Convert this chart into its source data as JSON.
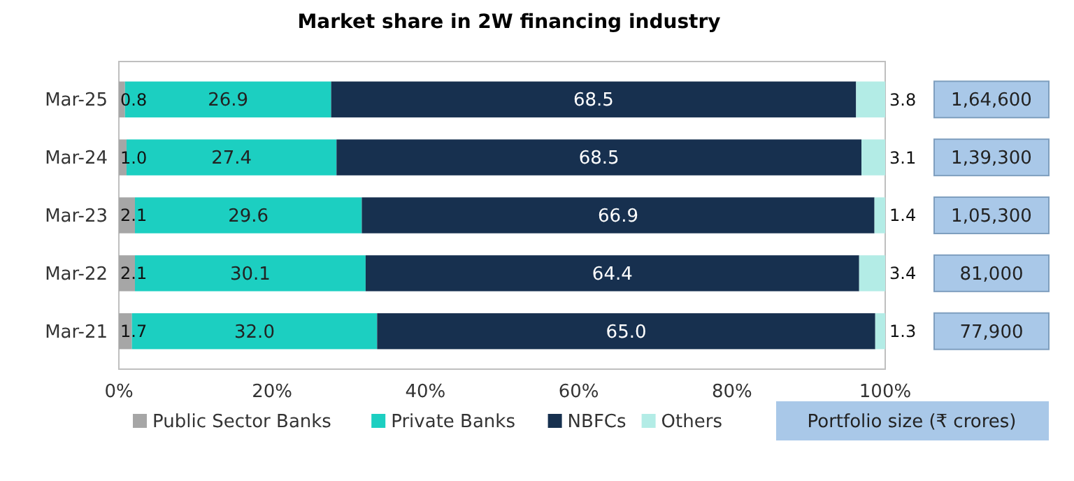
{
  "chart_data": {
    "type": "bar",
    "orientation": "horizontal",
    "stacked": true,
    "title": "Market share in 2W financing industry",
    "categories": [
      "Mar-25",
      "Mar-24",
      "Mar-23",
      "Mar-22",
      "Mar-21"
    ],
    "series": [
      {
        "name": "Public Sector Banks",
        "color": "#a6a6a6",
        "values": [
          0.8,
          1.0,
          2.1,
          2.1,
          1.7
        ],
        "value_labels": [
          "0.8",
          "1.0",
          "2.1",
          "2.1",
          "1.7"
        ]
      },
      {
        "name": "Private Banks",
        "color": "#1ccfc1",
        "values": [
          26.9,
          27.4,
          29.6,
          30.1,
          32.0
        ],
        "value_labels": [
          "26.9",
          "27.4",
          "29.6",
          "30.1",
          "32.0"
        ]
      },
      {
        "name": "NBFCs",
        "color": "#17304f",
        "values": [
          68.5,
          68.5,
          66.9,
          64.4,
          65.0
        ],
        "value_labels": [
          "68.5",
          "68.5",
          "66.9",
          "64.4",
          "65.0"
        ]
      },
      {
        "name": "Others",
        "color": "#b3ece6",
        "values": [
          3.8,
          3.1,
          1.4,
          3.4,
          1.3
        ],
        "value_labels": [
          "3.8",
          "3.1",
          "1.4",
          "3.4",
          "1.3"
        ]
      }
    ],
    "xlim": [
      0,
      100
    ],
    "xticks": [
      {
        "value": 0,
        "label": "0%"
      },
      {
        "value": 20,
        "label": "20%"
      },
      {
        "value": 40,
        "label": "40%"
      },
      {
        "value": 60,
        "label": "60%"
      },
      {
        "value": 80,
        "label": "80%"
      },
      {
        "value": 100,
        "label": "100%"
      }
    ],
    "grid": false,
    "legend": "bottom",
    "annotations": [
      "1,64,600",
      "1,39,300",
      "1,05,300",
      "81,000",
      "77,900",
      "Portfolio size (₹ crores)"
    ]
  }
}
